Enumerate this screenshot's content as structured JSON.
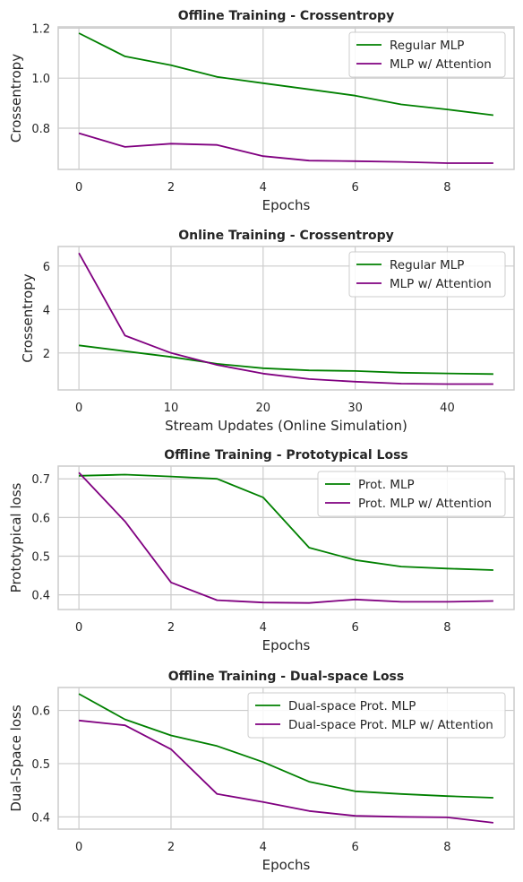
{
  "chart_data": [
    {
      "type": "line",
      "title": "Offline Training - Crossentropy",
      "xlabel": "Epochs",
      "ylabel": "Crossentropy",
      "xlim": [
        -0.45,
        9.45
      ],
      "ylim": [
        0.635,
        1.205
      ],
      "xticks": [
        0,
        2,
        4,
        6,
        8
      ],
      "yticks": [
        0.8,
        1.0,
        1.2
      ],
      "ytick_labels": [
        "0.8",
        "1.0",
        "1.2"
      ],
      "legend": "top-right",
      "grid": true,
      "x": [
        0,
        1,
        2,
        3,
        4,
        5,
        6,
        7,
        8,
        9
      ],
      "series": [
        {
          "name": "Regular MLP",
          "color": "#008000",
          "values": [
            1.18,
            1.087,
            1.052,
            1.005,
            0.98,
            0.955,
            0.93,
            0.895,
            0.875,
            0.852
          ]
        },
        {
          "name": "MLP w/ Attention",
          "color": "#800080",
          "values": [
            0.78,
            0.725,
            0.738,
            0.733,
            0.688,
            0.67,
            0.668,
            0.665,
            0.66,
            0.66
          ]
        }
      ]
    },
    {
      "type": "line",
      "title": "Online Training - Crossentropy",
      "xlabel": "Stream Updates (Online Simulation)",
      "ylabel": "Crossentropy",
      "xlim": [
        -2.25,
        47.25
      ],
      "ylim": [
        0.3,
        6.9
      ],
      "xticks": [
        0,
        10,
        20,
        30,
        40
      ],
      "yticks": [
        2,
        4,
        6
      ],
      "ytick_labels": [
        "2",
        "4",
        "6"
      ],
      "legend": "top-right",
      "grid": true,
      "x": [
        0,
        5,
        10,
        15,
        20,
        25,
        30,
        35,
        40,
        45
      ],
      "series": [
        {
          "name": "Regular MLP",
          "color": "#008000",
          "values": [
            2.35,
            2.08,
            1.82,
            1.5,
            1.3,
            1.2,
            1.17,
            1.09,
            1.06,
            1.03
          ]
        },
        {
          "name": "MLP w/ Attention",
          "color": "#800080",
          "values": [
            6.6,
            2.8,
            2.0,
            1.45,
            1.05,
            0.8,
            0.68,
            0.59,
            0.57,
            0.57
          ]
        }
      ]
    },
    {
      "type": "line",
      "title": "Offline Training - Prototypical Loss",
      "xlabel": "Epochs",
      "ylabel": "Prototypical loss",
      "xlim": [
        -0.45,
        9.45
      ],
      "ylim": [
        0.362,
        0.733
      ],
      "xticks": [
        0,
        2,
        4,
        6,
        8
      ],
      "yticks": [
        0.4,
        0.5,
        0.6,
        0.7
      ],
      "ytick_labels": [
        "0.4",
        "0.5",
        "0.6",
        "0.7"
      ],
      "legend": "top-right",
      "grid": true,
      "x": [
        0,
        1,
        2,
        3,
        4,
        5,
        6,
        7,
        8,
        9
      ],
      "series": [
        {
          "name": "Prot. MLP",
          "color": "#008000",
          "values": [
            0.708,
            0.711,
            0.706,
            0.7,
            0.652,
            0.522,
            0.49,
            0.473,
            0.468,
            0.464
          ]
        },
        {
          "name": "Prot. MLP w/ Attention",
          "color": "#800080",
          "values": [
            0.716,
            0.59,
            0.432,
            0.386,
            0.38,
            0.379,
            0.388,
            0.382,
            0.382,
            0.384
          ]
        }
      ]
    },
    {
      "type": "line",
      "title": "Offline Training - Dual-space Loss",
      "xlabel": "Epochs",
      "ylabel": "Dual-Space loss",
      "xlim": [
        -0.45,
        9.45
      ],
      "ylim": [
        0.377,
        0.643
      ],
      "xticks": [
        0,
        2,
        4,
        6,
        8
      ],
      "yticks": [
        0.4,
        0.5,
        0.6
      ],
      "ytick_labels": [
        "0.4",
        "0.5",
        "0.6"
      ],
      "legend": "top-right",
      "grid": true,
      "x": [
        0,
        1,
        2,
        3,
        4,
        5,
        6,
        7,
        8,
        9
      ],
      "series": [
        {
          "name": "Dual-space Prot. MLP",
          "color": "#008000",
          "values": [
            0.631,
            0.583,
            0.553,
            0.533,
            0.503,
            0.466,
            0.448,
            0.443,
            0.439,
            0.436
          ]
        },
        {
          "name": "Dual-space Prot. MLP w/ Attention",
          "color": "#800080",
          "values": [
            0.581,
            0.572,
            0.527,
            0.443,
            0.428,
            0.411,
            0.402,
            0.4,
            0.399,
            0.389
          ]
        }
      ]
    }
  ]
}
